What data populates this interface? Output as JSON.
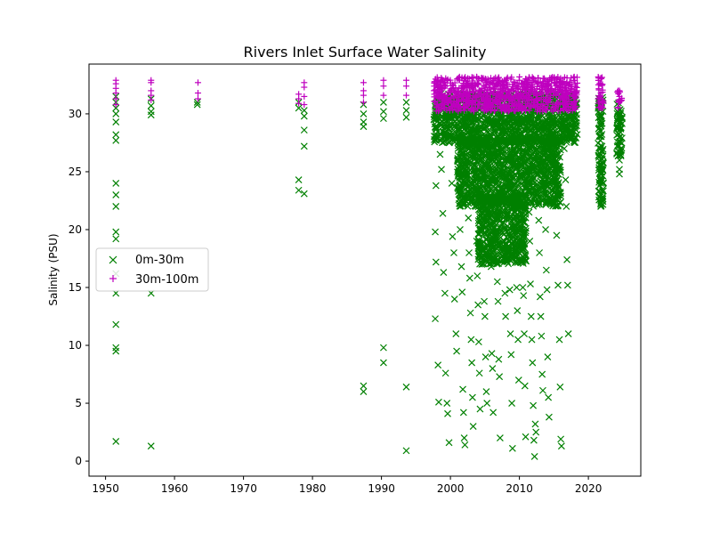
{
  "chart_data": {
    "type": "scatter",
    "title": "Rivers Inlet Surface Water Salinity",
    "xlabel": "",
    "ylabel": "Salinity (PSU)",
    "xlim": [
      1947.6,
      2027.6
    ],
    "ylim": [
      -1.3,
      34.3
    ],
    "xticks": [
      1950,
      1960,
      1970,
      1980,
      1990,
      2000,
      2010,
      2020
    ],
    "yticks": [
      0,
      5,
      10,
      15,
      20,
      25,
      30
    ],
    "legend_position": "center-left",
    "series": [
      {
        "name": "0m-30m",
        "color": "#008000",
        "marker": "x",
        "points": [
          [
            1951.5,
            31.5
          ],
          [
            1951.5,
            31.0
          ],
          [
            1951.5,
            30.5
          ],
          [
            1951.5,
            30.0
          ],
          [
            1951.5,
            29.3
          ],
          [
            1951.5,
            28.2
          ],
          [
            1951.5,
            27.7
          ],
          [
            1951.5,
            24.0
          ],
          [
            1951.5,
            23.0
          ],
          [
            1951.5,
            22.0
          ],
          [
            1951.5,
            19.8
          ],
          [
            1951.5,
            19.2
          ],
          [
            1951.5,
            16.2
          ],
          [
            1951.5,
            14.5
          ],
          [
            1951.5,
            11.8
          ],
          [
            1951.5,
            9.8
          ],
          [
            1951.5,
            9.5
          ],
          [
            1951.5,
            1.7
          ],
          [
            1956.6,
            31.3
          ],
          [
            1956.6,
            30.7
          ],
          [
            1956.6,
            30.2
          ],
          [
            1956.6,
            29.9
          ],
          [
            1956.6,
            14.5
          ],
          [
            1956.6,
            1.3
          ],
          [
            1963.3,
            31.0
          ],
          [
            1963.3,
            30.8
          ],
          [
            1978.0,
            31.0
          ],
          [
            1978.0,
            30.5
          ],
          [
            1978.0,
            24.3
          ],
          [
            1978.0,
            23.4
          ],
          [
            1978.8,
            30.3
          ],
          [
            1978.8,
            29.8
          ],
          [
            1978.8,
            28.6
          ],
          [
            1978.8,
            27.2
          ],
          [
            1978.8,
            23.1
          ],
          [
            1987.4,
            30.8
          ],
          [
            1987.4,
            30.0
          ],
          [
            1987.4,
            29.3
          ],
          [
            1987.4,
            28.9
          ],
          [
            1987.4,
            6.5
          ],
          [
            1987.4,
            6.0
          ],
          [
            1990.3,
            31.0
          ],
          [
            1990.3,
            30.2
          ],
          [
            1990.3,
            29.6
          ],
          [
            1990.3,
            9.8
          ],
          [
            1990.3,
            8.5
          ],
          [
            1993.6,
            31.0
          ],
          [
            1993.6,
            30.3
          ],
          [
            1993.6,
            29.7
          ],
          [
            1993.6,
            6.4
          ],
          [
            1993.6,
            0.9
          ],
          [
            1997.8,
            30.8
          ],
          [
            1997.9,
            29.5
          ],
          [
            1998.0,
            28.0
          ],
          [
            1997.9,
            23.8
          ],
          [
            1997.8,
            19.8
          ],
          [
            1997.9,
            17.2
          ],
          [
            1997.8,
            12.3
          ],
          [
            1998.2,
            8.3
          ],
          [
            1998.3,
            5.1
          ],
          [
            1998.5,
            26.5
          ],
          [
            1998.7,
            25.2
          ],
          [
            1998.9,
            21.4
          ],
          [
            1999.0,
            16.3
          ],
          [
            1999.2,
            14.5
          ],
          [
            1999.3,
            7.6
          ],
          [
            1999.5,
            5.0
          ],
          [
            1999.6,
            4.1
          ],
          [
            1999.8,
            1.6
          ],
          [
            2000.1,
            28.0
          ],
          [
            2000.2,
            24.0
          ],
          [
            2000.3,
            19.4
          ],
          [
            2000.5,
            18.0
          ],
          [
            2000.6,
            14.0
          ],
          [
            2000.8,
            11.0
          ],
          [
            2000.9,
            9.5
          ],
          [
            2001.1,
            27.0
          ],
          [
            2001.3,
            23.5
          ],
          [
            2001.4,
            20.0
          ],
          [
            2001.6,
            16.8
          ],
          [
            2001.7,
            14.6
          ],
          [
            2001.8,
            6.2
          ],
          [
            2001.9,
            4.2
          ],
          [
            2002.0,
            2.0
          ],
          [
            2002.1,
            1.4
          ],
          [
            2002.3,
            26.0
          ],
          [
            2002.5,
            23.3
          ],
          [
            2002.6,
            21.0
          ],
          [
            2002.7,
            18.0
          ],
          [
            2002.8,
            15.8
          ],
          [
            2002.9,
            12.8
          ],
          [
            2003.0,
            10.5
          ],
          [
            2003.1,
            8.5
          ],
          [
            2003.2,
            5.5
          ],
          [
            2003.3,
            3.0
          ],
          [
            2003.5,
            28.5
          ],
          [
            2003.6,
            24.8
          ],
          [
            2003.7,
            22.0
          ],
          [
            2003.8,
            19.0
          ],
          [
            2003.9,
            16.0
          ],
          [
            2004.0,
            13.5
          ],
          [
            2004.1,
            10.3
          ],
          [
            2004.2,
            7.6
          ],
          [
            2004.3,
            4.5
          ],
          [
            2004.5,
            27.5
          ],
          [
            2004.6,
            25.0
          ],
          [
            2004.7,
            21.8
          ],
          [
            2004.8,
            18.5
          ],
          [
            2004.9,
            13.8
          ],
          [
            2005.0,
            12.5
          ],
          [
            2005.1,
            9.0
          ],
          [
            2005.2,
            6.0
          ],
          [
            2005.3,
            5.0
          ],
          [
            2005.5,
            28.0
          ],
          [
            2005.6,
            24.0
          ],
          [
            2005.7,
            20.5
          ],
          [
            2005.8,
            17.5
          ],
          [
            2005.9,
            16.8
          ],
          [
            2006.0,
            9.3
          ],
          [
            2006.1,
            8.0
          ],
          [
            2006.2,
            4.2
          ],
          [
            2006.4,
            26.5
          ],
          [
            2006.5,
            23.0
          ],
          [
            2006.6,
            21.0
          ],
          [
            2006.7,
            19.5
          ],
          [
            2006.8,
            15.5
          ],
          [
            2006.9,
            13.8
          ],
          [
            2007.0,
            8.8
          ],
          [
            2007.1,
            7.3
          ],
          [
            2007.2,
            2.0
          ],
          [
            2007.4,
            27.0
          ],
          [
            2007.5,
            25.0
          ],
          [
            2007.6,
            22.5
          ],
          [
            2007.7,
            21.0
          ],
          [
            2007.8,
            17.8
          ],
          [
            2007.9,
            14.5
          ],
          [
            2008.0,
            12.5
          ],
          [
            2008.2,
            28.0
          ],
          [
            2008.3,
            24.5
          ],
          [
            2008.4,
            22.0
          ],
          [
            2008.5,
            19.0
          ],
          [
            2008.6,
            14.8
          ],
          [
            2008.7,
            11.0
          ],
          [
            2008.8,
            9.2
          ],
          [
            2008.9,
            5.0
          ],
          [
            2009.0,
            1.1
          ],
          [
            2009.2,
            26.8
          ],
          [
            2009.3,
            24.0
          ],
          [
            2009.4,
            21.5
          ],
          [
            2009.5,
            18.0
          ],
          [
            2009.6,
            15.0
          ],
          [
            2009.7,
            13.0
          ],
          [
            2009.8,
            10.5
          ],
          [
            2009.9,
            7.0
          ],
          [
            2010.1,
            27.5
          ],
          [
            2010.2,
            24.5
          ],
          [
            2010.3,
            22.0
          ],
          [
            2010.4,
            18.8
          ],
          [
            2010.5,
            15.0
          ],
          [
            2010.6,
            14.3
          ],
          [
            2010.7,
            11.0
          ],
          [
            2010.8,
            6.5
          ],
          [
            2010.9,
            2.1
          ],
          [
            2011.2,
            27.0
          ],
          [
            2011.3,
            24.0
          ],
          [
            2011.4,
            21.5
          ],
          [
            2011.5,
            19.0
          ],
          [
            2011.6,
            15.3
          ],
          [
            2011.7,
            12.5
          ],
          [
            2011.8,
            10.5
          ],
          [
            2011.9,
            8.5
          ],
          [
            2012.0,
            4.8
          ],
          [
            2012.1,
            1.8
          ],
          [
            2012.2,
            0.4
          ],
          [
            2012.3,
            3.2
          ],
          [
            2012.4,
            2.5
          ],
          [
            2012.6,
            26.0
          ],
          [
            2012.7,
            23.5
          ],
          [
            2012.8,
            20.8
          ],
          [
            2012.9,
            18.0
          ],
          [
            2013.0,
            14.2
          ],
          [
            2013.1,
            12.5
          ],
          [
            2013.2,
            10.8
          ],
          [
            2013.3,
            7.5
          ],
          [
            2013.4,
            6.1
          ],
          [
            2013.6,
            27.5
          ],
          [
            2013.7,
            24.0
          ],
          [
            2013.8,
            20.0
          ],
          [
            2013.9,
            16.5
          ],
          [
            2014.0,
            14.8
          ],
          [
            2014.1,
            9.0
          ],
          [
            2014.2,
            5.5
          ],
          [
            2014.3,
            3.8
          ],
          [
            2014.6,
            28.5
          ],
          [
            2014.8,
            26.5
          ],
          [
            2015.0,
            24.5
          ],
          [
            2015.2,
            22.5
          ],
          [
            2015.4,
            19.5
          ],
          [
            2015.6,
            15.2
          ],
          [
            2015.8,
            10.5
          ],
          [
            2015.9,
            6.4
          ],
          [
            2016.0,
            1.9
          ],
          [
            2016.1,
            1.3
          ],
          [
            2016.5,
            27.0
          ],
          [
            2016.7,
            24.3
          ],
          [
            2016.8,
            22.0
          ],
          [
            2016.9,
            17.4
          ],
          [
            2017.0,
            15.2
          ],
          [
            2017.1,
            11.0
          ],
          [
            2017.4,
            30.5
          ],
          [
            2017.7,
            30.8
          ],
          [
            2018.0,
            31.2
          ],
          [
            2018.2,
            30.8
          ],
          [
            2018.0,
            30.2
          ],
          [
            2017.8,
            29.8
          ],
          [
            2021.8,
            30.5
          ],
          [
            2021.8,
            28.5
          ],
          [
            2021.8,
            27.0
          ],
          [
            2021.8,
            25.5
          ],
          [
            2021.8,
            24.0
          ],
          [
            2021.8,
            23.0
          ],
          [
            2021.8,
            22.3
          ],
          [
            2021.8,
            22.0
          ],
          [
            2024.5,
            30.0
          ],
          [
            2024.5,
            29.0
          ],
          [
            2024.5,
            28.0
          ],
          [
            2024.5,
            26.5
          ],
          [
            2024.5,
            26.0
          ],
          [
            2024.5,
            25.2
          ],
          [
            2024.5,
            24.8
          ]
        ],
        "bands": [
          {
            "from": 1997.6,
            "to": 2018.4,
            "low": 27.5,
            "high": 31.8,
            "note": "dense cluster"
          },
          {
            "from": 2001.0,
            "to": 2016.0,
            "low": 22.0,
            "high": 28.0,
            "note": "dense cluster"
          },
          {
            "from": 2004.0,
            "to": 2011.0,
            "low": 17.0,
            "high": 23.0,
            "note": "dense cluster"
          },
          {
            "from": 2021.4,
            "to": 2022.2,
            "low": 22.0,
            "high": 31.5,
            "note": "dense cluster"
          },
          {
            "from": 2024.1,
            "to": 2024.9,
            "low": 26.0,
            "high": 31.0,
            "note": "dense cluster"
          }
        ]
      },
      {
        "name": "30m-100m",
        "color": "#bf00bf",
        "marker": "+",
        "points": [
          [
            1951.5,
            32.9
          ],
          [
            1951.5,
            32.6
          ],
          [
            1951.5,
            32.2
          ],
          [
            1951.5,
            31.8
          ],
          [
            1951.5,
            31.3
          ],
          [
            1951.5,
            30.8
          ],
          [
            1956.6,
            32.9
          ],
          [
            1956.6,
            32.7
          ],
          [
            1956.6,
            32.0
          ],
          [
            1956.6,
            31.6
          ],
          [
            1956.6,
            31.2
          ],
          [
            1963.4,
            32.7
          ],
          [
            1963.4,
            31.8
          ],
          [
            1963.4,
            31.3
          ],
          [
            1978.0,
            31.7
          ],
          [
            1978.0,
            31.3
          ],
          [
            1978.0,
            30.9
          ],
          [
            1978.8,
            32.7
          ],
          [
            1978.8,
            32.3
          ],
          [
            1978.8,
            31.5
          ],
          [
            1978.8,
            30.8
          ],
          [
            1987.4,
            32.7
          ],
          [
            1987.4,
            32.0
          ],
          [
            1987.4,
            31.6
          ],
          [
            1987.4,
            31.0
          ],
          [
            1990.3,
            32.9
          ],
          [
            1990.3,
            32.4
          ],
          [
            1990.3,
            31.6
          ],
          [
            1993.6,
            32.9
          ],
          [
            1993.6,
            32.4
          ],
          [
            1993.6,
            31.6
          ],
          [
            2021.8,
            33.1
          ],
          [
            2021.8,
            32.6
          ],
          [
            2021.8,
            31.8
          ],
          [
            2024.5,
            32.0
          ],
          [
            2024.5,
            31.5
          ],
          [
            2024.5,
            31.0
          ]
        ],
        "bands": [
          {
            "from": 1997.6,
            "to": 2018.4,
            "low": 30.2,
            "high": 33.2,
            "note": "dense cluster"
          },
          {
            "from": 2021.4,
            "to": 2022.2,
            "low": 30.5,
            "high": 33.3,
            "note": "dense cluster"
          },
          {
            "from": 2024.1,
            "to": 2024.9,
            "low": 30.5,
            "high": 32.0,
            "note": "dense cluster"
          }
        ]
      }
    ]
  }
}
